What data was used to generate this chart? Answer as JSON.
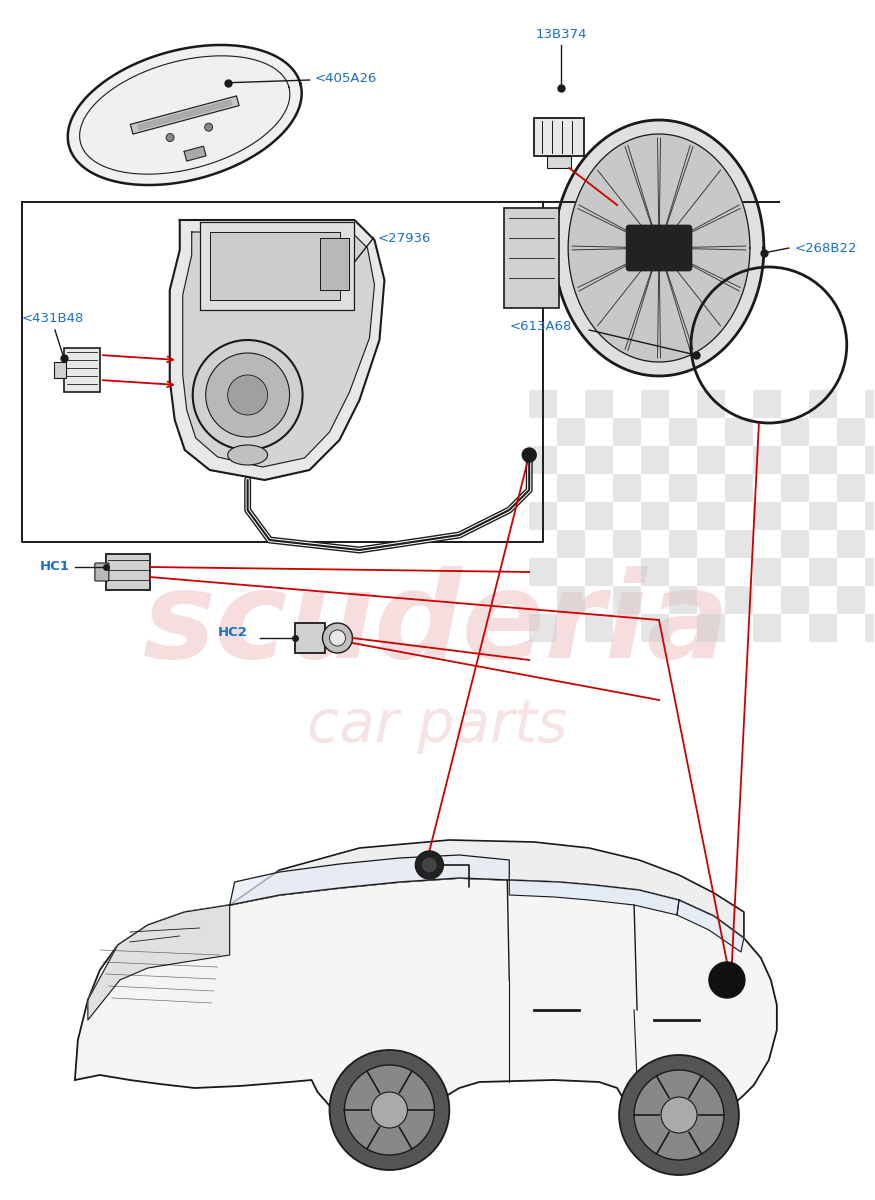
{
  "bg_color": "#ffffff",
  "line_color": "#1a1a1a",
  "red_line_color": "#cc0000",
  "blue_label_color": "#1a6fcc",
  "watermark_color_pink": "#f0c8c8",
  "watermark_color_gray": "#c8c8c8",
  "watermark_text1": "scuderia",
  "watermark_text2": "car parts",
  "labels": {
    "405A26": "<405A26",
    "13B374": "13B374",
    "268B22": "<268B22",
    "27936": "<27936",
    "431B48": "<431B48",
    "613A68": "<613A68",
    "HC1": "HC1",
    "HC2": "HC2"
  },
  "fig_width": 8.75,
  "fig_height": 12.0,
  "dpi": 100
}
